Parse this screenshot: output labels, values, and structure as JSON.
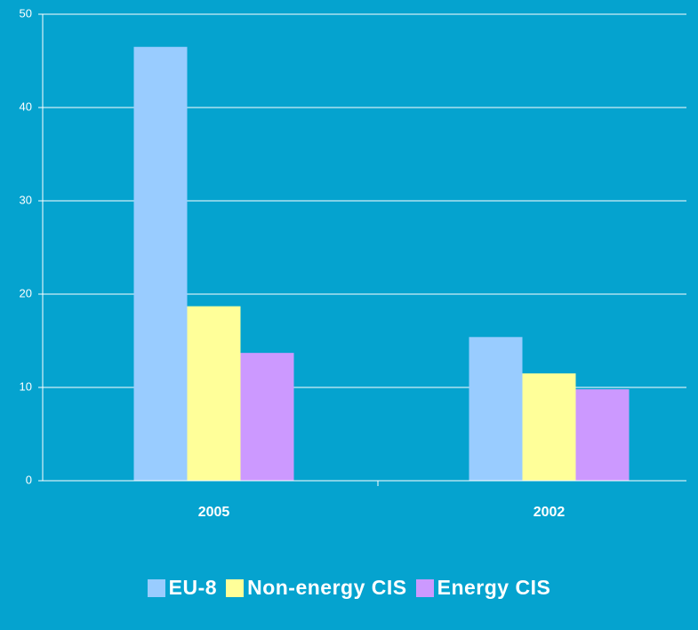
{
  "chart_data": {
    "type": "bar",
    "categories": [
      "2005",
      "2002"
    ],
    "series": [
      {
        "name": "EU-8",
        "color": "#99ccff",
        "values": [
          46.5,
          15.4
        ]
      },
      {
        "name": "Non-energy CIS",
        "color": "#ffff99",
        "values": [
          18.7,
          11.5
        ]
      },
      {
        "name": "Energy CIS",
        "color": "#cc99ff",
        "values": [
          13.7,
          9.8
        ]
      }
    ],
    "ylim": [
      0,
      50
    ],
    "yticks": [
      0,
      10,
      20,
      30,
      40,
      50
    ],
    "grid": true,
    "legend": "bottom"
  }
}
